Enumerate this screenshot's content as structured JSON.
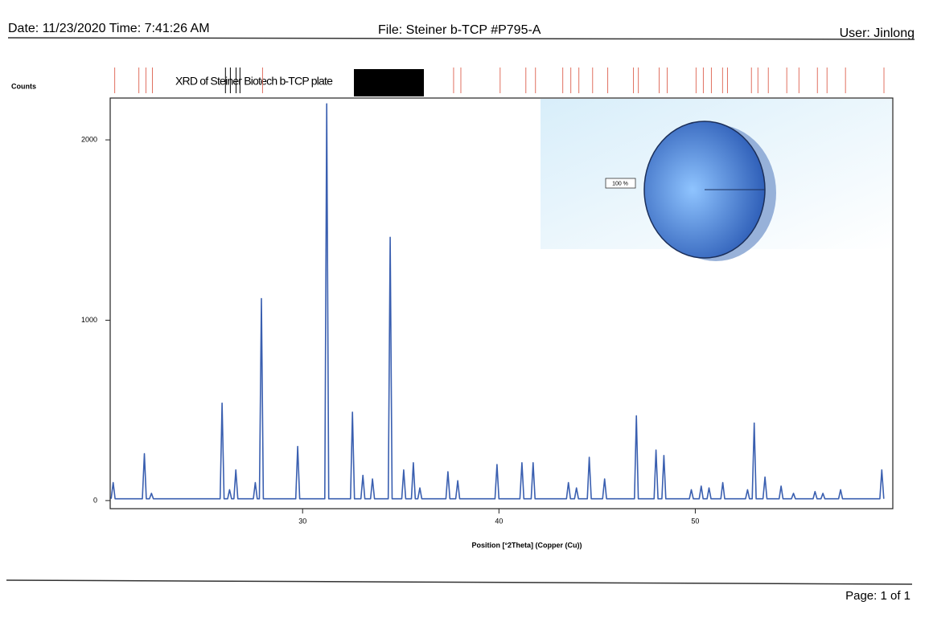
{
  "header": {
    "date": "Date: 11/23/2020 Time: 7:41:26 AM",
    "file": "File: Steiner b-TCP #P795-A",
    "user": "User: Jinlong"
  },
  "footer": {
    "page": "Page: 1 of 1"
  },
  "chart_data": [
    {
      "type": "line",
      "title": "XRD of Steiner Biotech b-TCP plate",
      "y_label": "Counts",
      "x_label": "Position [°2Theta] (Copper (Cu))",
      "xlim": [
        20.2,
        60.06
      ],
      "ylim": [
        -45,
        2232
      ],
      "xticks": [
        30,
        40,
        50
      ],
      "yticks": [
        0,
        1000,
        2000
      ],
      "color": "#3a5fb0",
      "x": [
        20.25,
        20.35,
        20.45,
        21.84,
        21.94,
        22.04,
        22.2,
        22.3,
        22.4,
        25.8,
        25.9,
        26.0,
        26.18,
        26.28,
        26.38,
        26.5,
        26.6,
        26.7,
        27.49,
        27.59,
        27.69,
        27.8,
        27.9,
        28.0,
        29.65,
        29.75,
        29.85,
        31.13,
        31.23,
        31.33,
        32.44,
        32.54,
        32.64,
        32.97,
        33.07,
        33.17,
        33.46,
        33.56,
        33.66,
        34.36,
        34.46,
        34.56,
        35.05,
        35.15,
        35.25,
        35.54,
        35.64,
        35.74,
        35.87,
        35.97,
        36.07,
        37.3,
        37.4,
        37.5,
        37.8,
        37.9,
        38.0,
        39.8,
        39.9,
        40.0,
        41.07,
        41.17,
        41.27,
        41.64,
        41.74,
        41.84,
        43.44,
        43.54,
        43.64,
        43.85,
        43.95,
        44.05,
        44.5,
        44.6,
        44.7,
        45.28,
        45.38,
        45.48,
        46.9,
        47.0,
        47.1,
        47.9,
        48.0,
        48.1,
        48.3,
        48.4,
        48.5,
        49.7,
        49.8,
        49.9,
        50.2,
        50.3,
        50.4,
        50.6,
        50.7,
        50.8,
        51.3,
        51.4,
        51.5,
        52.56,
        52.66,
        52.76,
        52.9,
        53.0,
        53.1,
        53.45,
        53.55,
        53.65,
        54.27,
        54.37,
        54.47,
        54.9,
        55.0,
        55.1,
        56.0,
        56.1,
        56.2,
        56.4,
        56.5,
        56.6,
        57.3,
        57.4,
        57.5,
        59.4,
        59.5,
        59.6
      ],
      "values": [
        10,
        100,
        10,
        10,
        260,
        10,
        10,
        40,
        10,
        10,
        540,
        10,
        10,
        60,
        10,
        10,
        170,
        10,
        10,
        100,
        10,
        10,
        1120,
        10,
        10,
        300,
        10,
        10,
        2200,
        10,
        10,
        490,
        10,
        10,
        140,
        10,
        10,
        120,
        10,
        10,
        1460,
        10,
        10,
        170,
        10,
        10,
        210,
        10,
        10,
        70,
        10,
        10,
        160,
        10,
        10,
        110,
        10,
        10,
        200,
        10,
        10,
        210,
        10,
        10,
        210,
        10,
        10,
        100,
        10,
        10,
        70,
        10,
        10,
        240,
        10,
        10,
        120,
        10,
        10,
        470,
        10,
        10,
        280,
        10,
        10,
        250,
        10,
        10,
        60,
        10,
        10,
        80,
        10,
        10,
        70,
        10,
        10,
        100,
        10,
        10,
        60,
        10,
        10,
        430,
        10,
        10,
        130,
        10,
        10,
        80,
        10,
        10,
        40,
        10,
        10,
        50,
        10,
        10,
        40,
        10,
        10,
        60,
        10,
        10,
        170,
        10
      ],
      "reference_lines": [
        {
          "color": "#e07060",
          "x": [
            20.43,
            21.66,
            22.02,
            22.35,
            27.96,
            37.69,
            38.06,
            40.06,
            41.37,
            41.86,
            43.25,
            43.66,
            44.07,
            44.77,
            45.54,
            46.85,
            47.1,
            48.16,
            48.57,
            50.04,
            50.41,
            50.82,
            51.39,
            51.64,
            52.86,
            53.19,
            53.72,
            54.66,
            55.28,
            56.22,
            56.71,
            57.65,
            59.61
          ]
        },
        {
          "color": "#000000",
          "x": [
            26.07,
            26.32,
            26.61,
            26.81
          ]
        }
      ]
    },
    {
      "type": "pie",
      "values": [
        100
      ],
      "value_labels": [
        "100 %"
      ],
      "color": "#3a66c0"
    }
  ]
}
